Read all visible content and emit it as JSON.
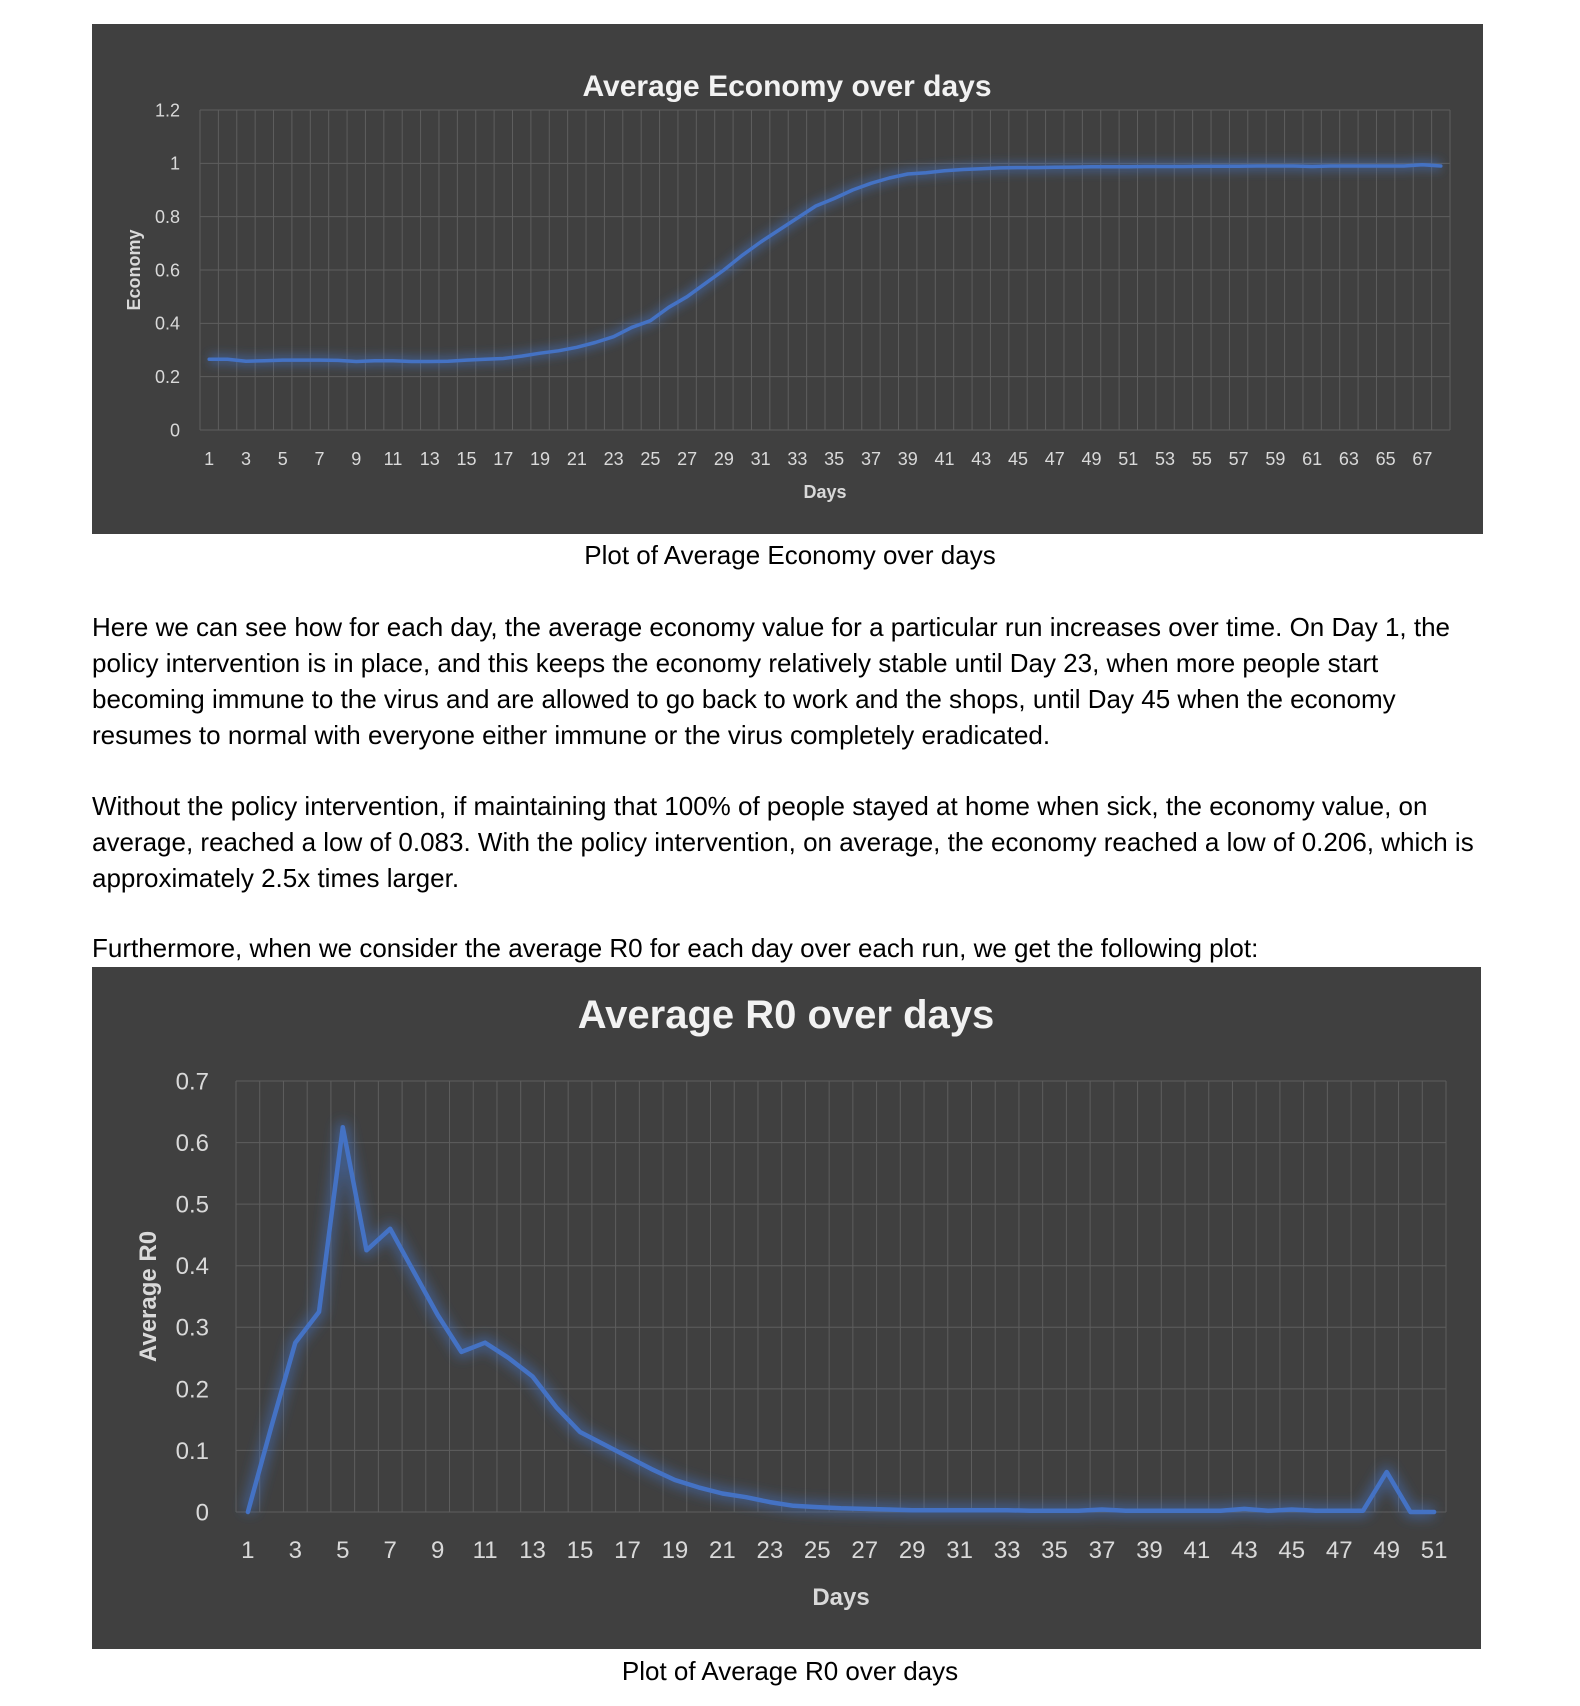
{
  "charts": [
    {
      "type": "line",
      "title": "Average Economy over days",
      "xlabel": "Days",
      "ylabel": "Economy",
      "ylim": [
        0,
        1.2
      ],
      "yticks": [
        "0",
        "0.2",
        "0.4",
        "0.6",
        "0.8",
        "1",
        "1.2"
      ],
      "x_tick_labels": [
        "1",
        "3",
        "5",
        "7",
        "9",
        "11",
        "13",
        "15",
        "17",
        "19",
        "21",
        "23",
        "25",
        "27",
        "29",
        "31",
        "33",
        "35",
        "37",
        "39",
        "41",
        "43",
        "45",
        "47",
        "49",
        "51",
        "53",
        "55",
        "57",
        "59",
        "61",
        "63",
        "65",
        "67"
      ],
      "grid": true,
      "legend": "none",
      "line_color": "#4472c4",
      "x": [
        1,
        2,
        3,
        4,
        5,
        6,
        7,
        8,
        9,
        10,
        11,
        12,
        13,
        14,
        15,
        16,
        17,
        18,
        19,
        20,
        21,
        22,
        23,
        24,
        25,
        26,
        27,
        28,
        29,
        30,
        31,
        32,
        33,
        34,
        35,
        36,
        37,
        38,
        39,
        40,
        41,
        42,
        43,
        44,
        45,
        46,
        47,
        48,
        49,
        50,
        51,
        52,
        53,
        54,
        55,
        56,
        57,
        58,
        59,
        60,
        61,
        62,
        63,
        64,
        65,
        66,
        67,
        68
      ],
      "values": [
        0.265,
        0.265,
        0.258,
        0.26,
        0.262,
        0.262,
        0.262,
        0.261,
        0.257,
        0.26,
        0.26,
        0.257,
        0.257,
        0.258,
        0.262,
        0.265,
        0.268,
        0.277,
        0.288,
        0.297,
        0.31,
        0.328,
        0.35,
        0.385,
        0.41,
        0.46,
        0.5,
        0.55,
        0.6,
        0.655,
        0.705,
        0.75,
        0.795,
        0.84,
        0.868,
        0.9,
        0.925,
        0.945,
        0.96,
        0.965,
        0.972,
        0.977,
        0.98,
        0.983,
        0.984,
        0.984,
        0.985,
        0.986,
        0.987,
        0.987,
        0.987,
        0.988,
        0.988,
        0.988,
        0.989,
        0.989,
        0.989,
        0.99,
        0.99,
        0.99,
        0.988,
        0.99,
        0.99,
        0.99,
        0.99,
        0.99,
        0.995,
        0.99
      ]
    },
    {
      "type": "line",
      "title": "Average R0 over days",
      "xlabel": "Days",
      "ylabel": "Average R0",
      "ylim": [
        0,
        0.7
      ],
      "yticks": [
        "0",
        "0.1",
        "0.2",
        "0.3",
        "0.4",
        "0.5",
        "0.6",
        "0.7"
      ],
      "x_tick_labels": [
        "1",
        "3",
        "5",
        "7",
        "9",
        "11",
        "13",
        "15",
        "17",
        "19",
        "21",
        "23",
        "25",
        "27",
        "29",
        "31",
        "33",
        "35",
        "37",
        "39",
        "41",
        "43",
        "45",
        "47",
        "49",
        "51"
      ],
      "grid": true,
      "legend": "none",
      "line_color": "#4472c4",
      "x": [
        1,
        2,
        3,
        4,
        5,
        6,
        7,
        8,
        9,
        10,
        11,
        12,
        13,
        14,
        15,
        16,
        17,
        18,
        19,
        20,
        21,
        22,
        23,
        24,
        25,
        26,
        27,
        28,
        29,
        30,
        31,
        32,
        33,
        34,
        35,
        36,
        37,
        38,
        39,
        40,
        41,
        42,
        43,
        44,
        45,
        46,
        47,
        48,
        49,
        50,
        51
      ],
      "values": [
        0,
        0.14,
        0.275,
        0.325,
        0.625,
        0.425,
        0.46,
        0.39,
        0.32,
        0.26,
        0.275,
        0.25,
        0.22,
        0.17,
        0.13,
        0.11,
        0.09,
        0.07,
        0.052,
        0.04,
        0.03,
        0.024,
        0.016,
        0.01,
        0.008,
        0.006,
        0.005,
        0.004,
        0.003,
        0.003,
        0.003,
        0.003,
        0.003,
        0.002,
        0.002,
        0.002,
        0.004,
        0.002,
        0.002,
        0.002,
        0.002,
        0.002,
        0.005,
        0.002,
        0.004,
        0.002,
        0.002,
        0.002,
        0.065,
        0,
        0
      ]
    }
  ],
  "captions": {
    "economy": "Plot of Average Economy over days",
    "r0": "Plot of Average R0 over days"
  },
  "paragraphs": [
    "Here we can see how for each day, the average economy value for a particular run increases over time. On Day 1, the policy intervention is in place, and this keeps the economy relatively stable until Day 23, when more people start becoming immune to the virus and are allowed to go back to work and the shops, until Day 45 when the economy resumes to normal with everyone either immune or the virus completely eradicated.",
    "Without the policy intervention, if maintaining that 100% of people stayed at home when sick, the economy value, on average, reached a low of 0.083. With the policy intervention, on average, the economy reached a low of 0.206, which is approximately 2.5x times larger.",
    "Furthermore, when we consider the average R0 for each day over each run, we get the following plot:"
  ]
}
